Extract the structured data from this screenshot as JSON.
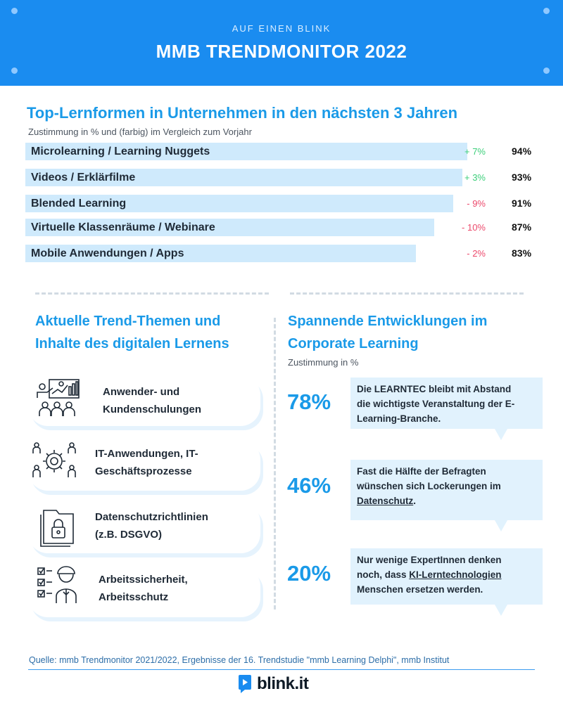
{
  "header": {
    "kicker": "AUF EINEN BLINK",
    "title": "MMB TRENDMONITOR 2022",
    "colors": {
      "background": "#1a8cf0",
      "accent": "#1a9ae8"
    }
  },
  "chart_data": {
    "type": "bar",
    "orientation": "horizontal",
    "title": "Top-Lernformen in Unternehmen in den nächsten 3 Jahren",
    "subtitle": "Zustimmung in % und (farbig) im Vergleich zum Vorjahr",
    "xlim": [
      0,
      100
    ],
    "categories": [
      "Microlearning / Learning Nuggets",
      "Videos / Erklärfilme",
      "Blended Learning",
      "Virtuelle Klassenräume / Webinare",
      "Mobile Anwendungen / Apps"
    ],
    "values": [
      94,
      93,
      91,
      87,
      83
    ],
    "value_labels": [
      "94%",
      "93%",
      "91%",
      "87%",
      "83%"
    ],
    "changes": [
      "+ 7%",
      "+ 3%",
      "- 9%",
      "- 10%",
      "- 2%"
    ],
    "change_colors": [
      "#3ccf7a",
      "#3ccf7a",
      "#ec4a6c",
      "#ec4a6c",
      "#ec4a6c"
    ],
    "bar_color": "#cfeafc"
  },
  "left": {
    "title_line1": "Aktuelle Trend-Themen und",
    "title_line2": "Inhalte des digitalen Lernens",
    "topics": [
      {
        "line1": "Anwender- und",
        "line2": "Kundenschulungen",
        "icon": "presentation-audience-icon"
      },
      {
        "line1": "IT-Anwendungen, IT-",
        "line2": "Geschäftsprozesse",
        "icon": "gear-people-icon"
      },
      {
        "line1": "Datenschutzrichtlinien",
        "line2": "(z.B. DSGVO)",
        "icon": "lock-folder-icon"
      },
      {
        "line1": "Arbeitssicherheit,",
        "line2": "Arbeitsschutz",
        "icon": "checklist-worker-icon"
      }
    ]
  },
  "right": {
    "title_line1": "Spannende Entwicklungen im",
    "title_line2": "Corporate Learning",
    "subtitle": "Zustimmung in %",
    "items": [
      {
        "pct": "78%",
        "line1": "Die LEARNTEC bleibt  mit Abstand",
        "line2": "die wichtigste Veranstaltung der E-",
        "line3": "Learning-Branche."
      },
      {
        "pct": "46%",
        "line1": "Fast die Hälfte der Befragten",
        "line2": "wünschen sich Lockerungen im",
        "link": "Datenschutz",
        "after": "."
      },
      {
        "pct": "20%",
        "line1": "Nur wenige ExpertInnen denken",
        "line2_pre": "noch, dass ",
        "link": "KI-Lerntechnologien",
        "line3": "Menschen ersetzen werden."
      }
    ]
  },
  "footer": {
    "source": "Quelle: mmb Trendmonitor 2021/2022, Ergebnisse der 16. Trendstudie \"mmb Learning Delphi\", mmb Institut",
    "logo": "blink.it"
  }
}
